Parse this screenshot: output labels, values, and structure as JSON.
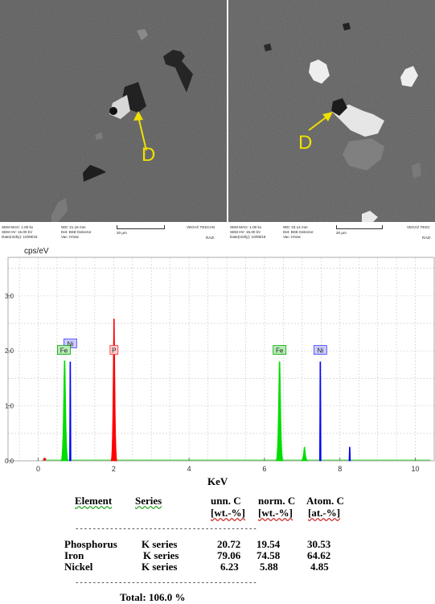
{
  "micrographs": [
    {
      "label": "D",
      "info": {
        "mag": "SEM MAG: 1.00 kx",
        "hv": "SEM HV: 15.00 kV",
        "date": "Date(m/d/y): 10/08/16",
        "wd": "WD: 21.15 mm",
        "det": "Det: BSE Detector",
        "vac": "Vac: HiVac",
        "scale": "20 μm",
        "brand": "VEGA\\\\ TESCAN",
        "lab": "RAZI"
      }
    },
    {
      "label": "D",
      "info": {
        "mag": "SEM MAG: 1.00 kx",
        "hv": "SEM HV: 15.00 kV",
        "date": "Date(m/d/y): 10/08/16",
        "wd": "WD: 23.14 mm",
        "det": "Det: BSE Detector",
        "vac": "Vac: HiVac",
        "scale": "20 μm",
        "brand": "VEGA\\\\ TESC",
        "lab": "RAZI"
      }
    }
  ],
  "chart_data": {
    "type": "area",
    "ylabel": "cps/eV",
    "xlabel": "KeV",
    "xlim": [
      -0.8,
      10.5
    ],
    "ylim": [
      0,
      3.7
    ],
    "xticks": [
      0,
      2,
      4,
      6,
      8,
      10
    ],
    "yticks": [
      "0.0",
      "1.0",
      "2.0",
      "3.0"
    ],
    "grid": true,
    "peaks": [
      {
        "element": "Fe",
        "energy": 0.7,
        "height": 1.82,
        "width": 0.06,
        "color": "#00dd00"
      },
      {
        "element": "Ni",
        "energy": 0.85,
        "height": 1.8,
        "width": 0.012,
        "color": "#0000ff"
      },
      {
        "element": "P",
        "energy": 2.01,
        "height": 2.58,
        "width": 0.05,
        "color": "#ff0000"
      },
      {
        "element": "Fe",
        "energy": 6.4,
        "height": 1.8,
        "width": 0.06,
        "color": "#00dd00"
      },
      {
        "element": "Fe",
        "energy": 7.06,
        "height": 0.25,
        "width": 0.05,
        "color": "#00dd00"
      },
      {
        "element": "Ni",
        "energy": 7.48,
        "height": 1.8,
        "width": 0.012,
        "color": "#0000ff"
      },
      {
        "element": "Ni",
        "energy": 8.26,
        "height": 0.25,
        "width": 0.012,
        "color": "#0000ff"
      }
    ],
    "labels": [
      {
        "text": "Ni",
        "energy": 0.85,
        "color": "#4040ff"
      },
      {
        "text": "Fe",
        "energy": 0.68,
        "color": "#00aa00"
      },
      {
        "text": "P",
        "energy": 2.01,
        "color": "#ff3030"
      },
      {
        "text": "Fe",
        "energy": 6.4,
        "color": "#00aa00"
      },
      {
        "text": "Ni",
        "energy": 7.48,
        "color": "#4040ff"
      }
    ]
  },
  "table": {
    "headers": {
      "element": "Element",
      "series": "Series",
      "unn": "unn. C",
      "norm": "norm. C",
      "atom": "Atom. C"
    },
    "units": {
      "unn": "[wt.-%]",
      "norm": "[wt.-%]",
      "atom": "[at.-%]"
    },
    "rows": [
      {
        "element": "Phosphorus",
        "series": "K series",
        "unn": "20.72",
        "norm": "19.54",
        "atom": "30.53"
      },
      {
        "element": "Iron",
        "series": "K series",
        "unn": "79.06",
        "norm": "74.58",
        "atom": "64.62"
      },
      {
        "element": "Nickel",
        "series": "K series",
        "unn": "6.23",
        "norm": "5.88",
        "atom": "4.85"
      }
    ],
    "total": "Total: 106.0 %"
  }
}
